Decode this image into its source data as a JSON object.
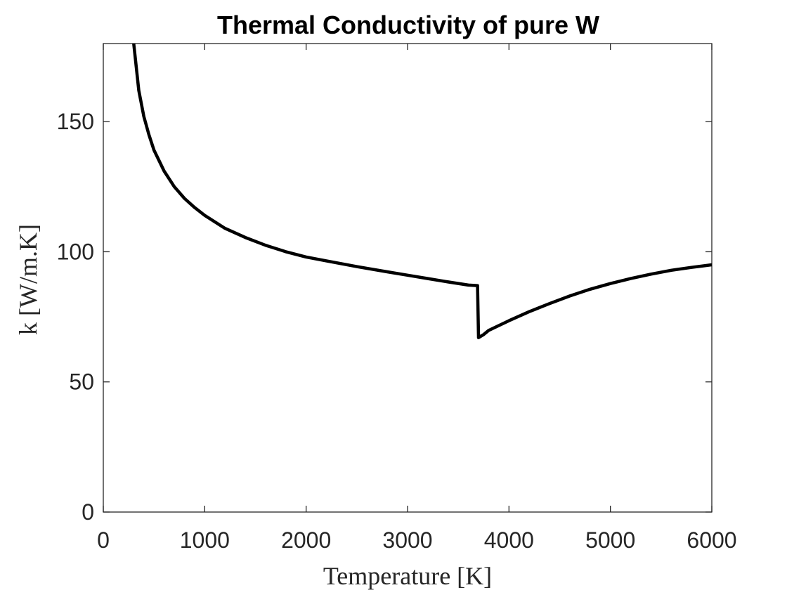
{
  "chart_data": {
    "type": "line",
    "title": "Thermal Conductivity of pure W",
    "xlabel": "Temperature [K]",
    "ylabel": "k [W/m.K]",
    "xlim": [
      0,
      6000
    ],
    "ylim": [
      0,
      180
    ],
    "xticks": [
      0,
      1000,
      2000,
      3000,
      4000,
      5000,
      6000
    ],
    "yticks": [
      0,
      50,
      100,
      150
    ],
    "grid": false,
    "line_color": "#000000",
    "series": [
      {
        "x": [
          300,
          350,
          400,
          450,
          500,
          600,
          700,
          800,
          900,
          1000,
          1200,
          1400,
          1600,
          1800,
          2000,
          2200,
          2500,
          2800,
          3000,
          3200,
          3400,
          3600,
          3690,
          3700,
          3750,
          3800,
          4000,
          4200,
          4400,
          4600,
          4800,
          5000,
          5200,
          5400,
          5600,
          5800,
          6000
        ],
        "y": [
          180,
          162,
          152,
          145,
          139,
          131,
          125,
          120.5,
          117,
          114,
          109,
          105.5,
          102.5,
          100,
          98,
          96.5,
          94.3,
          92.3,
          91,
          89.7,
          88.4,
          87.2,
          87,
          67,
          68.2,
          69.8,
          73.5,
          77,
          80.1,
          83,
          85.6,
          87.8,
          89.7,
          91.4,
          92.9,
          94,
          95
        ]
      }
    ]
  }
}
